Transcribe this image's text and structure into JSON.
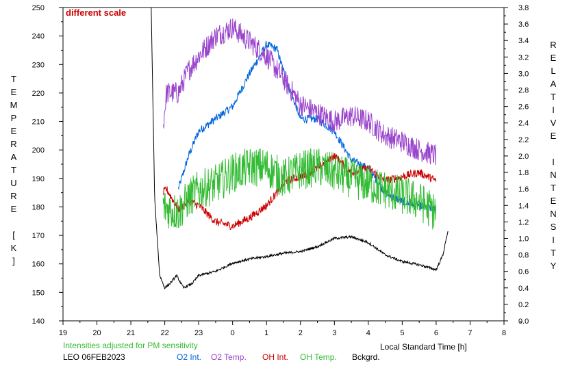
{
  "chart_data": {
    "type": "line",
    "note": "different scale",
    "xlabel": "Local Standard Time [h]",
    "xlim": [
      19,
      32
    ],
    "x_ticks": [
      "19",
      "20",
      "21",
      "22",
      "23",
      "0",
      "1",
      "2",
      "3",
      "4",
      "5",
      "6",
      "7",
      "8"
    ],
    "ylabel_left": "TEMPERATURE [K]",
    "ylim_left": [
      140,
      250
    ],
    "y_ticks_left": [
      "140",
      "150",
      "160",
      "170",
      "180",
      "190",
      "200",
      "210",
      "220",
      "230",
      "240",
      "250"
    ],
    "ylabel_right": "RELATIVE INTENSITY",
    "ylim_right": [
      0.0,
      3.8
    ],
    "y_ticks_right": [
      "0.0",
      "0.2",
      "0.4",
      "0.6",
      "0.8",
      "1.0",
      "1.2",
      "1.4",
      "1.6",
      "1.8",
      "2.0",
      "2.2",
      "2.4",
      "2.6",
      "2.8",
      "3.0",
      "3.2",
      "3.4",
      "3.6",
      "3.8"
    ],
    "footer_note": "Intensities adjusted for PM sensitivity",
    "station_date": "LEO 06FEB2023",
    "series": [
      {
        "name": "O2 Int.",
        "axis": "right",
        "color": "#0066dd",
        "noise": 0.05,
        "x": [
          22.4,
          22.7,
          23.0,
          23.5,
          24.0,
          24.5,
          25.0,
          25.3,
          25.6,
          26.0,
          26.5,
          27.0,
          27.5,
          28.0,
          28.5,
          29.0,
          29.5,
          30.0
        ],
        "y": [
          1.6,
          2.0,
          2.3,
          2.45,
          2.6,
          3.0,
          3.35,
          3.3,
          2.9,
          2.45,
          2.45,
          2.3,
          1.95,
          1.85,
          1.55,
          1.45,
          1.4,
          1.35
        ]
      },
      {
        "name": "O2 Temp.",
        "axis": "left",
        "color": "#9944cc",
        "noise": 4,
        "x": [
          21.95,
          22.05,
          22.4,
          22.7,
          23.0,
          23.5,
          24.0,
          24.5,
          25.0,
          25.5,
          26.0,
          26.5,
          27.0,
          27.5,
          28.0,
          28.5,
          29.0,
          29.5,
          30.0
        ],
        "y": [
          208,
          220,
          220,
          228,
          233,
          240,
          243,
          238,
          233,
          225,
          216,
          213,
          210,
          212,
          210,
          205,
          203,
          200,
          198
        ]
      },
      {
        "name": "OH Int.",
        "axis": "right",
        "color": "#cc0000",
        "noise": 0.05,
        "x": [
          21.95,
          22.05,
          22.4,
          22.7,
          23.0,
          23.5,
          24.0,
          24.5,
          25.0,
          25.3,
          25.6,
          26.0,
          26.5,
          27.0,
          27.5,
          28.0,
          28.5,
          29.0,
          29.5,
          30.0
        ],
        "y": [
          1.55,
          1.6,
          1.35,
          1.45,
          1.4,
          1.2,
          1.15,
          1.25,
          1.4,
          1.55,
          1.7,
          1.75,
          1.85,
          2.0,
          1.8,
          1.85,
          1.7,
          1.75,
          1.8,
          1.7
        ]
      },
      {
        "name": "OH Temp.",
        "axis": "left",
        "color": "#33bb33",
        "noise": 7,
        "x": [
          21.95,
          22.4,
          22.7,
          23.0,
          23.5,
          24.0,
          24.5,
          25.0,
          25.5,
          26.0,
          26.5,
          27.0,
          27.5,
          28.0,
          28.5,
          29.0,
          29.5,
          30.0
        ],
        "y": [
          180,
          178,
          183,
          186,
          188,
          192,
          194,
          194,
          190,
          193,
          194,
          192,
          190,
          188,
          186,
          184,
          182,
          178
        ]
      },
      {
        "name": "Bckgrd.",
        "axis": "right",
        "color": "#000000",
        "noise": 0.015,
        "x": [
          21.6,
          21.7,
          21.85,
          22.0,
          22.15,
          22.35,
          22.55,
          22.8,
          23.0,
          23.5,
          24.0,
          24.5,
          25.0,
          25.5,
          26.0,
          26.5,
          27.0,
          27.5,
          28.0,
          28.5,
          29.0,
          29.5,
          30.0,
          30.2,
          30.35
        ],
        "y": [
          3.8,
          1.5,
          0.55,
          0.4,
          0.45,
          0.55,
          0.4,
          0.45,
          0.55,
          0.6,
          0.7,
          0.75,
          0.78,
          0.82,
          0.84,
          0.9,
          1.0,
          1.02,
          0.95,
          0.8,
          0.72,
          0.68,
          0.62,
          0.8,
          1.1
        ]
      }
    ]
  }
}
